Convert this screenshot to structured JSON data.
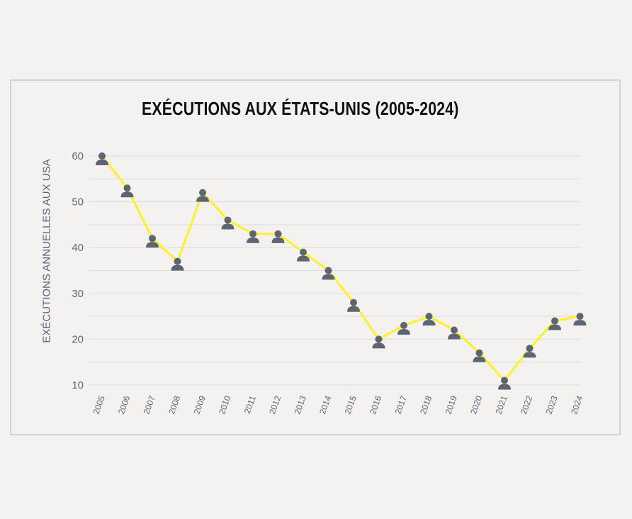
{
  "chart_data": {
    "type": "line",
    "title": "EXÉCUTIONS AUX ÉTATS-UNIS (2005-2024)",
    "ylabel": "EXÉCUTIONS ANNUELLES AUX USA",
    "xlabel": "",
    "x": [
      "2005",
      "2006",
      "2007",
      "2008",
      "2009",
      "2010",
      "2011",
      "2012",
      "2013",
      "2014",
      "2015",
      "2016",
      "2017",
      "2018",
      "2019",
      "2020",
      "2021",
      "2022",
      "2023",
      "2024"
    ],
    "series": [
      {
        "values": [
          60,
          53,
          42,
          37,
          52,
          46,
          43,
          43,
          39,
          35,
          28,
          20,
          23,
          25,
          22,
          17,
          11,
          18,
          24,
          25
        ]
      }
    ],
    "yticks": [
      10,
      20,
      30,
      40,
      50,
      60
    ],
    "ylim": [
      10,
      60
    ],
    "grid": true,
    "marker": "person-icon",
    "colors": {
      "line": "#fff21e",
      "marker": "#5d6670",
      "grid": "#dcdcdc",
      "text": "#5d6670"
    }
  }
}
